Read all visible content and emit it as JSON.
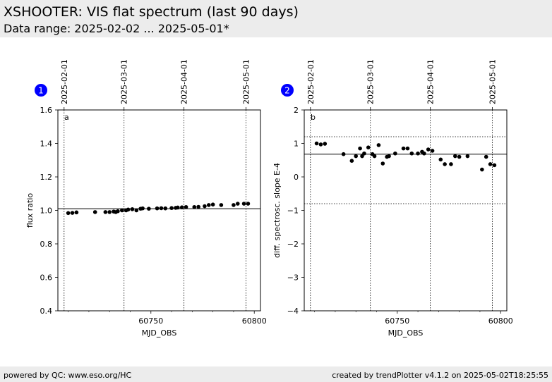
{
  "header": {
    "title": "XSHOOTER: VIS flat spectrum (last 90 days)",
    "subtitle": "Data range: 2025-02-02 ... 2025-05-01*"
  },
  "footer": {
    "left": "powered by QC: www.eso.org/HC",
    "right": "created by trendPlotter v4.1.2 on 2025-05-02T18:25:55"
  },
  "colors": {
    "background_band": "#ececec",
    "badge": "#0000ff",
    "points": "#000000"
  },
  "chart_data": [
    {
      "type": "scatter",
      "badge": "1",
      "corner_label": "a",
      "xlabel": "MJD_OBS",
      "ylabel": "flux ratio",
      "xlim": [
        60705,
        60803
      ],
      "ylim": [
        0.4,
        1.6
      ],
      "xticks": [
        60750,
        60800
      ],
      "yticks": [
        0.4,
        0.6,
        0.8,
        1.0,
        1.2,
        1.4,
        1.6
      ],
      "ytick_labels": [
        "0.4",
        "0.6",
        "0.8",
        "1.0",
        "1.2",
        "1.4",
        "1.6"
      ],
      "date_markers": [
        {
          "mjd": 60708,
          "label": "2025-02-01"
        },
        {
          "mjd": 60737,
          "label": "2025-03-01"
        },
        {
          "mjd": 60766,
          "label": "2025-04-01"
        },
        {
          "mjd": 60796,
          "label": "2025-05-01"
        }
      ],
      "reference_lines": {
        "solid": 1.01,
        "dotted": []
      },
      "x": [
        60710,
        60712,
        60714,
        60723,
        60728,
        60730,
        60732,
        60733,
        60734,
        60736,
        60738,
        60739,
        60741,
        60743,
        60745,
        60746,
        60749,
        60753,
        60755,
        60757,
        60760,
        60762,
        60763,
        60765,
        60767,
        60771,
        60773,
        60776,
        60778,
        60780,
        60784,
        60790,
        60792,
        60795,
        60797
      ],
      "y": [
        0.984,
        0.985,
        0.988,
        0.99,
        0.99,
        0.99,
        0.993,
        0.99,
        0.995,
        1.0,
        1.0,
        1.005,
        1.007,
        1.0,
        1.01,
        1.012,
        1.01,
        1.012,
        1.013,
        1.012,
        1.014,
        1.015,
        1.017,
        1.018,
        1.02,
        1.02,
        1.021,
        1.025,
        1.032,
        1.035,
        1.032,
        1.032,
        1.04,
        1.04,
        1.04
      ]
    },
    {
      "type": "scatter",
      "badge": "2",
      "corner_label": "b",
      "xlabel": "MJD_OBS",
      "ylabel": "diff. spectrosc. slope E-4",
      "xlim": [
        60705,
        60803
      ],
      "ylim": [
        -4,
        2
      ],
      "xticks": [
        60750,
        60800
      ],
      "yticks": [
        -4,
        -3,
        -2,
        -1,
        0,
        1,
        2
      ],
      "ytick_labels": [
        "−4",
        "−3",
        "−2",
        "−1",
        "0",
        "1",
        "2"
      ],
      "date_markers": [
        {
          "mjd": 60708,
          "label": "2025-02-01"
        },
        {
          "mjd": 60737,
          "label": "2025-03-01"
        },
        {
          "mjd": 60766,
          "label": "2025-04-01"
        },
        {
          "mjd": 60796,
          "label": "2025-05-01"
        }
      ],
      "reference_lines": {
        "solid": 0.68,
        "dotted": [
          1.2,
          -0.8
        ]
      },
      "x": [
        60711,
        60713,
        60715,
        60724,
        60728,
        60730,
        60732,
        60733,
        60734,
        60736,
        60738,
        60739,
        60741,
        60743,
        60745,
        60746,
        60749,
        60753,
        60755,
        60757,
        60760,
        60762,
        60763,
        60765,
        60767,
        60771,
        60773,
        60776,
        60778,
        60780,
        60784,
        60791,
        60793,
        60795,
        60797
      ],
      "y": [
        1.0,
        0.97,
        0.99,
        0.68,
        0.48,
        0.62,
        0.85,
        0.62,
        0.7,
        0.88,
        0.68,
        0.62,
        0.95,
        0.4,
        0.6,
        0.62,
        0.7,
        0.85,
        0.85,
        0.7,
        0.7,
        0.75,
        0.7,
        0.82,
        0.78,
        0.52,
        0.38,
        0.38,
        0.62,
        0.6,
        0.62,
        0.22,
        0.6,
        0.38,
        0.35
      ]
    }
  ]
}
